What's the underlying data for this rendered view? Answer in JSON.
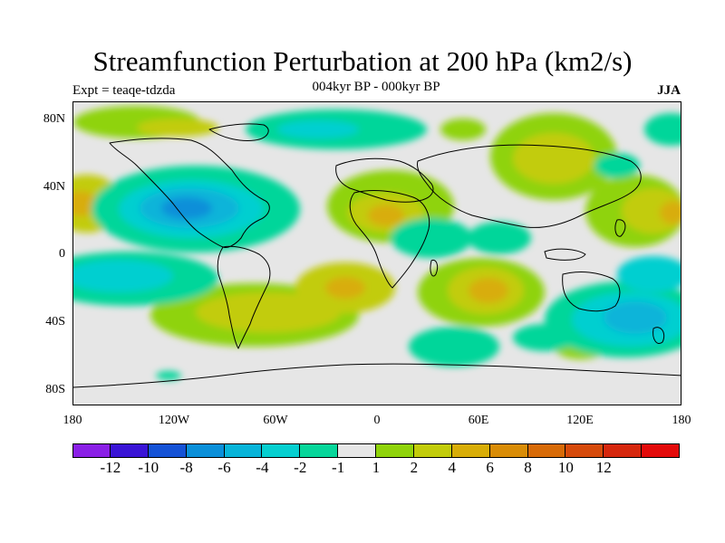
{
  "title": "Streamfunction Perturbation at 200 hPa (km2/s)",
  "subtitle": "004kyr BP - 000kyr BP",
  "left_label": "Expt = teaqe-tdzda",
  "right_label": "JJA",
  "lat_labels": [
    "80N",
    "40N",
    "0",
    "40S",
    "80S"
  ],
  "lon_labels": [
    "180",
    "120W",
    "60W",
    "0",
    "60E",
    "120E",
    "180"
  ],
  "colorbar": {
    "colors": [
      "#8a1fe6",
      "#3a14d6",
      "#1452d6",
      "#0a8fd9",
      "#07b4d9",
      "#05cfd0",
      "#06d69a",
      "#e6e6e6",
      "#8fd30a",
      "#c2cc0a",
      "#d8ad07",
      "#d98c06",
      "#d76a07",
      "#d64a0b",
      "#d6270d",
      "#e30a0a"
    ],
    "labels": [
      "-12",
      "-10",
      "-8",
      "-6",
      "-4",
      "-2",
      "-1",
      "1",
      "2",
      "4",
      "6",
      "8",
      "10",
      "12"
    ]
  },
  "colors": {
    "neutral": "#e6e6e6",
    "pos1": "#8fd30a",
    "pos2": "#c2cc0a",
    "pos3": "#d8ad07",
    "neg1": "#06d69a",
    "neg2": "#05cfd0",
    "neg3": "#07b4d9",
    "neg4": "#0a8fd9",
    "neg5": "#1452d6"
  }
}
